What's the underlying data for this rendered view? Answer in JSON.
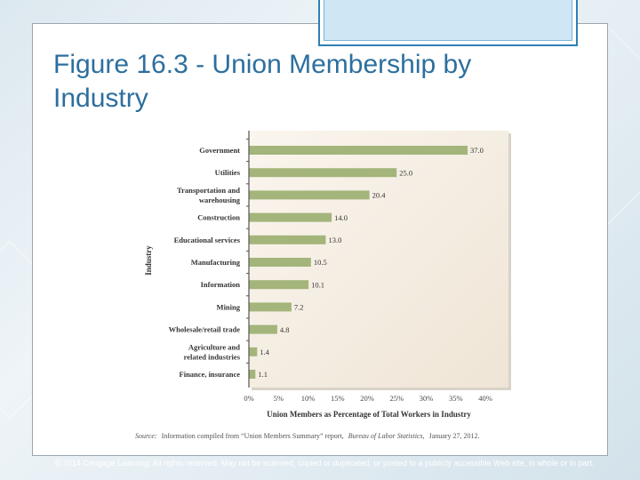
{
  "slide": {
    "title_line1": "Figure 16.3 - Union Membership by",
    "title_line2": "Industry",
    "footer": "© 2014 Cengage Learning. All rights reserved. May not be scanned, copied or duplicated, or posted to a publicly accessible Web site, in whole or in part."
  },
  "colors": {
    "bar": "#a3b57a",
    "title": "#2d6f9e",
    "plot_bg": "#f4ece0",
    "accent_border": "#2f7fb6"
  },
  "chart_data": {
    "type": "bar",
    "orientation": "horizontal",
    "categories": [
      "Government",
      "Utilities",
      "Transportation and warehousing",
      "Construction",
      "Educational services",
      "Manufacturing",
      "Information",
      "Mining",
      "Wholesale/retail trade",
      "Agriculture and related industries",
      "Finance, insurance"
    ],
    "category_lines": [
      [
        "Government"
      ],
      [
        "Utilities"
      ],
      [
        "Transportation and",
        "warehousing"
      ],
      [
        "Construction"
      ],
      [
        "Educational services"
      ],
      [
        "Manufacturing"
      ],
      [
        "Information"
      ],
      [
        "Mining"
      ],
      [
        "Wholesale/retail trade"
      ],
      [
        "Agriculture and",
        "related industries"
      ],
      [
        "Finance, insurance"
      ]
    ],
    "values": [
      37.0,
      25.0,
      20.4,
      14.0,
      13.0,
      10.5,
      10.1,
      7.2,
      4.8,
      1.4,
      1.1
    ],
    "value_labels": [
      "37.0",
      "25.0",
      "20.4",
      "14.0",
      "13.0",
      "10.5",
      "10.1",
      "7.2",
      "4.8",
      "1.4",
      "1.1"
    ],
    "xlim": [
      0,
      40
    ],
    "xticks": [
      "0%",
      "5%",
      "10%",
      "15%",
      "20%",
      "25%",
      "30%",
      "35%",
      "40%"
    ],
    "xlabel": "Union Members as Percentage of Total Workers in Industry",
    "ylabel": "Industry",
    "source_prefix": "Source:",
    "source_text": "Information compiled from “Union Members Summary” report,",
    "source_italic": "Bureau of Labor Statistics,",
    "source_date": "January 27, 2012."
  }
}
